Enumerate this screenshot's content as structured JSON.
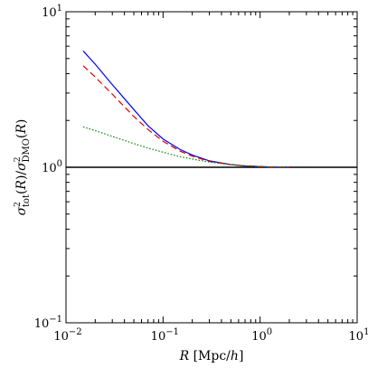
{
  "chart_data": {
    "type": "line",
    "xlabel": "R [Mpc/h]",
    "ylabel": "σ²tot(R)/σ²DMO(R)",
    "xscale": "log",
    "yscale": "log",
    "xlim": [
      0.01,
      10
    ],
    "ylim": [
      0.1,
      10
    ],
    "xticks": [
      {
        "value": 0.01,
        "base": "10",
        "exp": "−2"
      },
      {
        "value": 0.1,
        "base": "10",
        "exp": "−1"
      },
      {
        "value": 1,
        "base": "10",
        "exp": "0"
      },
      {
        "value": 10,
        "base": "10",
        "exp": "1"
      }
    ],
    "yticks": [
      {
        "value": 0.1,
        "base": "10",
        "exp": "−1"
      },
      {
        "value": 1,
        "base": "10",
        "exp": "0"
      },
      {
        "value": 10,
        "base": "10",
        "exp": "1"
      }
    ],
    "reference_line": {
      "y": 1,
      "color": "#000000"
    },
    "series": [
      {
        "color": "#0000ff",
        "dash": "solid",
        "x": [
          0.015,
          0.02,
          0.03,
          0.05,
          0.07,
          0.1,
          0.15,
          0.2,
          0.3,
          0.5,
          0.7,
          1.0,
          1.5,
          2.0
        ],
        "y": [
          5.6,
          4.6,
          3.4,
          2.35,
          1.85,
          1.52,
          1.3,
          1.2,
          1.1,
          1.04,
          1.02,
          1.01,
          1.0,
          1.0
        ]
      },
      {
        "color": "#e00000",
        "dash": "dashed",
        "x": [
          0.015,
          0.02,
          0.03,
          0.05,
          0.07,
          0.1,
          0.15,
          0.2,
          0.3,
          0.5,
          0.7,
          1.0,
          1.5,
          2.0
        ],
        "y": [
          4.5,
          3.8,
          2.95,
          2.12,
          1.75,
          1.47,
          1.27,
          1.18,
          1.09,
          1.04,
          1.02,
          1.01,
          1.0,
          1.0
        ]
      },
      {
        "color": "#008000",
        "dash": "dotted",
        "x": [
          0.015,
          0.02,
          0.03,
          0.05,
          0.07,
          0.1,
          0.15,
          0.2,
          0.3,
          0.5,
          0.7,
          1.0,
          1.5,
          2.0
        ],
        "y": [
          1.82,
          1.72,
          1.58,
          1.42,
          1.33,
          1.25,
          1.17,
          1.13,
          1.08,
          1.04,
          1.02,
          1.01,
          1.0,
          1.0
        ]
      }
    ]
  }
}
